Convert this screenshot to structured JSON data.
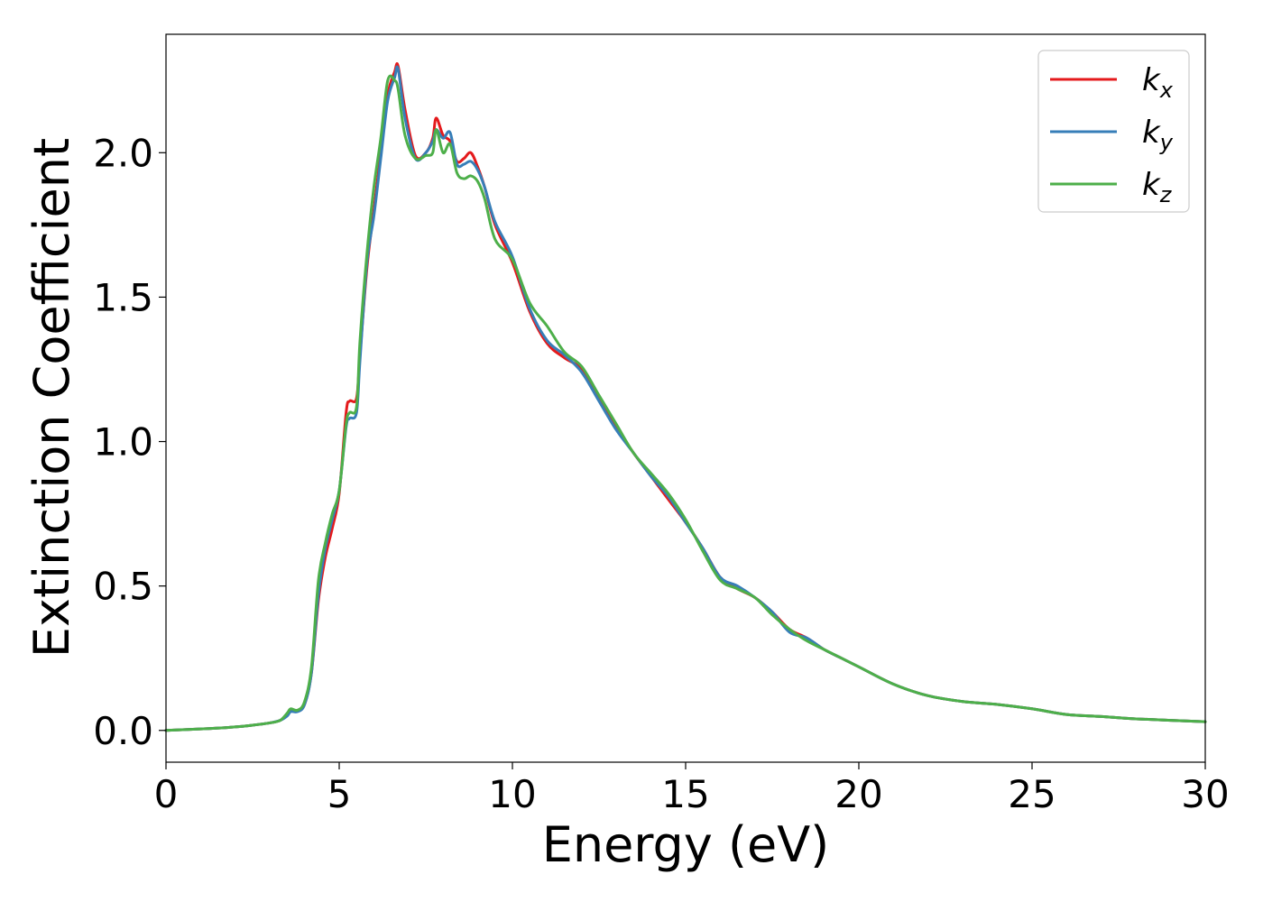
{
  "chart_data": {
    "type": "line",
    "xlabel": "Energy (eV)",
    "ylabel": "Extinction Coefficient",
    "xlim": [
      0,
      30
    ],
    "ylim": [
      -0.11,
      2.41
    ],
    "xticks": [
      0,
      5,
      10,
      15,
      20,
      25,
      30
    ],
    "xtick_labels": [
      "0",
      "5",
      "10",
      "15",
      "20",
      "25",
      "30"
    ],
    "yticks": [
      0.0,
      0.5,
      1.0,
      1.5,
      2.0
    ],
    "ytick_labels": [
      "0.0",
      "0.5",
      "1.0",
      "1.5",
      "2.0"
    ],
    "grid": false,
    "legend_position": "top-right",
    "series": [
      {
        "name": "k",
        "subscript": "x",
        "color": "#e41a1c",
        "x": [
          0,
          1,
          2,
          2.5,
          3,
          3.3,
          3.5,
          3.6,
          3.8,
          4.0,
          4.2,
          4.4,
          4.6,
          4.8,
          5.0,
          5.2,
          5.3,
          5.5,
          5.6,
          5.8,
          6.0,
          6.2,
          6.4,
          6.6,
          6.7,
          6.9,
          7.2,
          7.5,
          7.7,
          7.8,
          8.0,
          8.2,
          8.4,
          8.6,
          8.8,
          9.0,
          9.2,
          9.5,
          10.0,
          10.5,
          11.0,
          11.5,
          12.0,
          12.5,
          13.0,
          13.5,
          14.0,
          14.5,
          15.0,
          15.5,
          16.0,
          16.5,
          17.0,
          17.5,
          18.0,
          18.5,
          19.0,
          19.5,
          20.0,
          21.0,
          22.0,
          23.0,
          24.0,
          25.0,
          26.0,
          27.0,
          28.0,
          30.0
        ],
        "y": [
          0.0,
          0.005,
          0.012,
          0.018,
          0.026,
          0.035,
          0.055,
          0.07,
          0.07,
          0.09,
          0.2,
          0.45,
          0.6,
          0.7,
          0.82,
          1.1,
          1.14,
          1.15,
          1.3,
          1.6,
          1.8,
          2.0,
          2.2,
          2.28,
          2.3,
          2.15,
          1.99,
          2.0,
          2.05,
          2.12,
          2.06,
          2.04,
          1.97,
          1.98,
          2.0,
          1.95,
          1.88,
          1.75,
          1.62,
          1.45,
          1.34,
          1.29,
          1.25,
          1.15,
          1.05,
          0.96,
          0.88,
          0.8,
          0.72,
          0.63,
          0.53,
          0.49,
          0.46,
          0.41,
          0.35,
          0.32,
          0.28,
          0.25,
          0.22,
          0.16,
          0.12,
          0.1,
          0.09,
          0.075,
          0.055,
          0.048,
          0.04,
          0.03
        ]
      },
      {
        "name": "k",
        "subscript": "y",
        "color": "#377eb8",
        "x": [
          0,
          1,
          2,
          2.5,
          3,
          3.3,
          3.5,
          3.6,
          3.8,
          4.0,
          4.2,
          4.4,
          4.6,
          4.8,
          5.0,
          5.2,
          5.3,
          5.5,
          5.6,
          5.8,
          6.0,
          6.2,
          6.4,
          6.6,
          6.7,
          6.9,
          7.2,
          7.5,
          7.7,
          7.8,
          8.0,
          8.2,
          8.4,
          8.6,
          8.8,
          9.0,
          9.2,
          9.5,
          10.0,
          10.5,
          11.0,
          11.5,
          12.0,
          12.5,
          13.0,
          13.5,
          14.0,
          14.5,
          15.0,
          15.5,
          16.0,
          16.5,
          17.0,
          17.5,
          18.0,
          18.5,
          19.0,
          19.5,
          20.0,
          21.0,
          22.0,
          23.0,
          24.0,
          25.0,
          26.0,
          27.0,
          28.0,
          30.0
        ],
        "y": [
          0.0,
          0.005,
          0.012,
          0.018,
          0.026,
          0.035,
          0.05,
          0.065,
          0.065,
          0.09,
          0.2,
          0.47,
          0.63,
          0.73,
          0.83,
          1.05,
          1.08,
          1.1,
          1.28,
          1.62,
          1.78,
          1.98,
          2.18,
          2.26,
          2.29,
          2.12,
          1.98,
          2.0,
          2.04,
          2.08,
          2.05,
          2.07,
          1.96,
          1.96,
          1.97,
          1.94,
          1.88,
          1.76,
          1.64,
          1.46,
          1.35,
          1.3,
          1.24,
          1.14,
          1.04,
          0.96,
          0.88,
          0.81,
          0.72,
          0.63,
          0.53,
          0.5,
          0.46,
          0.41,
          0.34,
          0.32,
          0.28,
          0.25,
          0.22,
          0.16,
          0.12,
          0.1,
          0.09,
          0.075,
          0.055,
          0.048,
          0.04,
          0.03
        ]
      },
      {
        "name": "k",
        "subscript": "z",
        "color": "#4daf4a",
        "x": [
          0,
          1,
          2,
          2.5,
          3,
          3.3,
          3.5,
          3.6,
          3.8,
          4.0,
          4.2,
          4.4,
          4.6,
          4.8,
          5.0,
          5.2,
          5.3,
          5.5,
          5.6,
          5.8,
          6.0,
          6.2,
          6.4,
          6.6,
          6.7,
          6.9,
          7.2,
          7.5,
          7.7,
          7.8,
          8.0,
          8.2,
          8.4,
          8.6,
          8.8,
          9.0,
          9.2,
          9.5,
          10.0,
          10.5,
          11.0,
          11.5,
          12.0,
          12.5,
          13.0,
          13.5,
          14.0,
          14.5,
          15.0,
          15.5,
          16.0,
          16.5,
          17.0,
          17.5,
          18.0,
          18.5,
          19.0,
          19.5,
          20.0,
          21.0,
          22.0,
          23.0,
          24.0,
          25.0,
          26.0,
          27.0,
          28.0,
          30.0
        ],
        "y": [
          0.0,
          0.005,
          0.012,
          0.018,
          0.026,
          0.035,
          0.06,
          0.075,
          0.07,
          0.1,
          0.22,
          0.52,
          0.65,
          0.75,
          0.83,
          1.06,
          1.1,
          1.12,
          1.35,
          1.65,
          1.88,
          2.05,
          2.25,
          2.25,
          2.22,
          2.06,
          1.98,
          1.99,
          2.0,
          2.08,
          2.0,
          2.03,
          1.93,
          1.91,
          1.92,
          1.9,
          1.84,
          1.7,
          1.63,
          1.48,
          1.4,
          1.31,
          1.26,
          1.16,
          1.06,
          0.96,
          0.89,
          0.82,
          0.73,
          0.62,
          0.52,
          0.49,
          0.46,
          0.4,
          0.35,
          0.31,
          0.28,
          0.25,
          0.22,
          0.16,
          0.12,
          0.1,
          0.09,
          0.075,
          0.055,
          0.048,
          0.04,
          0.03
        ]
      }
    ]
  }
}
